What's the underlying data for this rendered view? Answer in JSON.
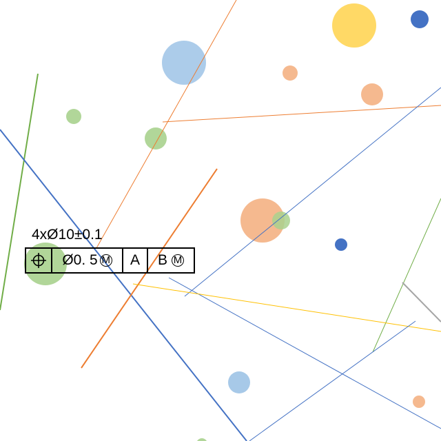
{
  "callout": {
    "text": "4xØ10±0.1"
  },
  "frame": {
    "symbol": "position-icon",
    "tolerance": "Ø0. 5",
    "tolerance_modifier": "M",
    "datum_a": "A",
    "datum_b": "B",
    "datum_b_modifier": "M"
  },
  "colors": {
    "blue": "#4472c4",
    "orange": "#ed7d31",
    "green": "#70ad47",
    "yellow": "#ffc000",
    "gray": "#a5a5a5",
    "light_blue": "#9dc3e6",
    "light_orange": "#f4b183",
    "light_green": "#a9d18e",
    "light_yellow": "#ffd966"
  }
}
